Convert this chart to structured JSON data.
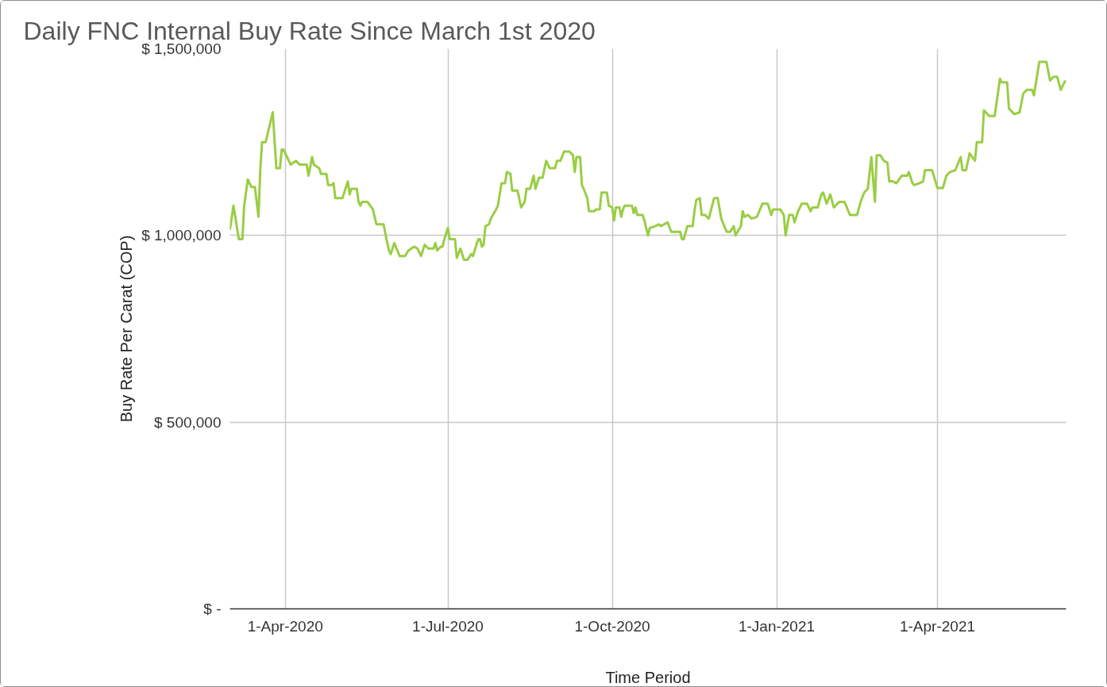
{
  "chart_data": {
    "type": "line",
    "title": "Daily FNC Internal Buy Rate Since March 1st 2020",
    "xlabel": "Time Period",
    "ylabel": "Buy Rate Per Carat (COP)",
    "xlim": [
      "2020-03-01",
      "2021-06-12"
    ],
    "xticks": [
      {
        "value": "2020-04-01",
        "label": "1-Apr-2020"
      },
      {
        "value": "2020-07-01",
        "label": "1-Jul-2020"
      },
      {
        "value": "2020-10-01",
        "label": "1-Oct-2020"
      },
      {
        "value": "2021-01-01",
        "label": "1-Jan-2021"
      },
      {
        "value": "2021-04-01",
        "label": "1-Apr-2021"
      }
    ],
    "ylim": [
      0,
      1500000
    ],
    "yticks": [
      {
        "value": 0,
        "label": "$ -"
      },
      {
        "value": 500000,
        "label": "$ 500,000"
      },
      {
        "value": 1000000,
        "label": "$ 1,000,000"
      },
      {
        "value": 1500000,
        "label": "$ 1,500,000"
      }
    ],
    "grid": true,
    "x": [
      "2020-03-01",
      "2020-03-03",
      "2020-03-06",
      "2020-03-08",
      "2020-03-09",
      "2020-03-11",
      "2020-03-13",
      "2020-03-15",
      "2020-03-17",
      "2020-03-18",
      "2020-03-19",
      "2020-03-21",
      "2020-03-23",
      "2020-03-25",
      "2020-03-27",
      "2020-03-29",
      "2020-03-30",
      "2020-03-31",
      "2020-04-02",
      "2020-04-04",
      "2020-04-07",
      "2020-04-09",
      "2020-04-13",
      "2020-04-14",
      "2020-04-16",
      "2020-04-17",
      "2020-04-20",
      "2020-04-21",
      "2020-04-24",
      "2020-04-25",
      "2020-04-27",
      "2020-04-28",
      "2020-04-29",
      "2020-05-03",
      "2020-05-06",
      "2020-05-07",
      "2020-05-08",
      "2020-05-11",
      "2020-05-12",
      "2020-05-13",
      "2020-05-14",
      "2020-05-17",
      "2020-05-20",
      "2020-05-22",
      "2020-05-26",
      "2020-05-27",
      "2020-05-29",
      "2020-05-30",
      "2020-06-01",
      "2020-06-04",
      "2020-06-07",
      "2020-06-09",
      "2020-06-12",
      "2020-06-14",
      "2020-06-16",
      "2020-06-18",
      "2020-06-20",
      "2020-06-23",
      "2020-06-24",
      "2020-06-25",
      "2020-06-27",
      "2020-06-28",
      "2020-06-29",
      "2020-07-01",
      "2020-07-02",
      "2020-07-05",
      "2020-07-06",
      "2020-07-08",
      "2020-07-10",
      "2020-07-12",
      "2020-07-14",
      "2020-07-15",
      "2020-07-18",
      "2020-07-19",
      "2020-07-20",
      "2020-07-21",
      "2020-07-22",
      "2020-07-24",
      "2020-07-25",
      "2020-07-28",
      "2020-07-29",
      "2020-07-31",
      "2020-08-02",
      "2020-08-03",
      "2020-08-05",
      "2020-08-06",
      "2020-08-09",
      "2020-08-11",
      "2020-08-13",
      "2020-08-14",
      "2020-08-16",
      "2020-08-18",
      "2020-08-19",
      "2020-08-21",
      "2020-08-23",
      "2020-08-25",
      "2020-08-27",
      "2020-08-30",
      "2020-08-31",
      "2020-09-02",
      "2020-09-04",
      "2020-09-07",
      "2020-09-09",
      "2020-09-10",
      "2020-09-11",
      "2020-09-13",
      "2020-09-14",
      "2020-09-15",
      "2020-09-17",
      "2020-09-18",
      "2020-09-21",
      "2020-09-22",
      "2020-09-24",
      "2020-09-25",
      "2020-09-28",
      "2020-09-29",
      "2020-10-01",
      "2020-10-02",
      "2020-10-03",
      "2020-10-05",
      "2020-10-06",
      "2020-10-07",
      "2020-10-08",
      "2020-10-12",
      "2020-10-13",
      "2020-10-14",
      "2020-10-15",
      "2020-10-18",
      "2020-10-19",
      "2020-10-21",
      "2020-10-22",
      "2020-10-25",
      "2020-10-27",
      "2020-10-28",
      "2020-11-01",
      "2020-11-03",
      "2020-11-08",
      "2020-11-09",
      "2020-11-10",
      "2020-11-12",
      "2020-11-15",
      "2020-11-16",
      "2020-11-17",
      "2020-11-19",
      "2020-11-20",
      "2020-11-22",
      "2020-11-24",
      "2020-11-27",
      "2020-11-29",
      "2020-12-01",
      "2020-12-04",
      "2020-12-06",
      "2020-12-08",
      "2020-12-09",
      "2020-12-12",
      "2020-12-13",
      "2020-12-14",
      "2020-12-16",
      "2020-12-18",
      "2020-12-21",
      "2020-12-24",
      "2020-12-27",
      "2020-12-29",
      "2020-12-30",
      "2021-01-03",
      "2021-01-05",
      "2021-01-06",
      "2021-01-08",
      "2021-01-10",
      "2021-01-11",
      "2021-01-13",
      "2021-01-15",
      "2021-01-18",
      "2021-01-20",
      "2021-01-21",
      "2021-01-24",
      "2021-01-26",
      "2021-01-27",
      "2021-01-29",
      "2021-01-31",
      "2021-02-02",
      "2021-02-05",
      "2021-02-08",
      "2021-02-11",
      "2021-02-15",
      "2021-02-17",
      "2021-02-19",
      "2021-02-21",
      "2021-02-23",
      "2021-02-25",
      "2021-02-26",
      "2021-02-28",
      "2021-03-02",
      "2021-03-04",
      "2021-03-05",
      "2021-03-07",
      "2021-03-09",
      "2021-03-12",
      "2021-03-15",
      "2021-03-16",
      "2021-03-18",
      "2021-03-19",
      "2021-03-22",
      "2021-03-24",
      "2021-03-25",
      "2021-03-29",
      "2021-04-01",
      "2021-04-04",
      "2021-04-06",
      "2021-04-08",
      "2021-04-11",
      "2021-04-14",
      "2021-04-15",
      "2021-04-17",
      "2021-04-19",
      "2021-04-22",
      "2021-04-23",
      "2021-04-26",
      "2021-04-27",
      "2021-04-30",
      "2021-05-03",
      "2021-05-06",
      "2021-05-07",
      "2021-05-10",
      "2021-05-11",
      "2021-05-14",
      "2021-05-17",
      "2021-05-19",
      "2021-05-21",
      "2021-05-24",
      "2021-05-25",
      "2021-05-27",
      "2021-05-28",
      "2021-06-01",
      "2021-06-03",
      "2021-06-05",
      "2021-06-07",
      "2021-06-09",
      "2021-06-11",
      "2021-06-12"
    ],
    "series": [
      {
        "color": "#9acd45",
        "values": [
          1015000,
          1080000,
          990000,
          990000,
          1080000,
          1150000,
          1130000,
          1130000,
          1050000,
          1175000,
          1250000,
          1250000,
          1290000,
          1330000,
          1180000,
          1180000,
          1230000,
          1230000,
          1210000,
          1190000,
          1200000,
          1190000,
          1190000,
          1160000,
          1210000,
          1190000,
          1180000,
          1165000,
          1165000,
          1135000,
          1135000,
          1140000,
          1100000,
          1100000,
          1145000,
          1110000,
          1125000,
          1125000,
          1090000,
          1080000,
          1090000,
          1090000,
          1070000,
          1030000,
          1030000,
          1005000,
          960000,
          950000,
          980000,
          945000,
          945000,
          960000,
          970000,
          965000,
          945000,
          975000,
          965000,
          965000,
          980000,
          960000,
          970000,
          970000,
          990000,
          1020000,
          990000,
          990000,
          940000,
          965000,
          935000,
          935000,
          950000,
          945000,
          990000,
          990000,
          970000,
          975000,
          1025000,
          1030000,
          1045000,
          1070000,
          1080000,
          1140000,
          1140000,
          1170000,
          1165000,
          1120000,
          1120000,
          1075000,
          1090000,
          1125000,
          1125000,
          1160000,
          1125000,
          1155000,
          1155000,
          1200000,
          1180000,
          1180000,
          1200000,
          1200000,
          1225000,
          1225000,
          1215000,
          1170000,
          1210000,
          1210000,
          1135000,
          1125000,
          1100000,
          1065000,
          1065000,
          1070000,
          1070000,
          1115000,
          1115000,
          1080000,
          1075000,
          1040000,
          1075000,
          1075000,
          1050000,
          1070000,
          1080000,
          1080000,
          1060000,
          1075000,
          1055000,
          1055000,
          1040000,
          1000000,
          1020000,
          1025000,
          1030000,
          1025000,
          1035000,
          1010000,
          1010000,
          990000,
          990000,
          1025000,
          1025000,
          1065000,
          1095000,
          1100000,
          1055000,
          1055000,
          1045000,
          1100000,
          1100000,
          1045000,
          1010000,
          1010000,
          1025000,
          1000000,
          1025000,
          1065000,
          1050000,
          1055000,
          1045000,
          1050000,
          1085000,
          1085000,
          1055000,
          1070000,
          1070000,
          1055000,
          1000000,
          1055000,
          1055000,
          1035000,
          1065000,
          1085000,
          1085000,
          1065000,
          1075000,
          1075000,
          1110000,
          1115000,
          1085000,
          1110000,
          1075000,
          1090000,
          1090000,
          1055000,
          1055000,
          1090000,
          1115000,
          1125000,
          1210000,
          1090000,
          1215000,
          1215000,
          1200000,
          1195000,
          1145000,
          1145000,
          1140000,
          1160000,
          1160000,
          1170000,
          1140000,
          1135000,
          1140000,
          1145000,
          1175000,
          1175000,
          1127000,
          1127000,
          1160000,
          1170000,
          1175000,
          1210000,
          1175000,
          1175000,
          1220000,
          1200000,
          1250000,
          1250000,
          1335000,
          1320000,
          1320000,
          1420000,
          1410000,
          1410000,
          1340000,
          1325000,
          1330000,
          1380000,
          1390000,
          1390000,
          1375000,
          1435000,
          1465000,
          1465000,
          1415000,
          1425000,
          1425000,
          1390000,
          1410000,
          1415000
        ]
      }
    ]
  }
}
